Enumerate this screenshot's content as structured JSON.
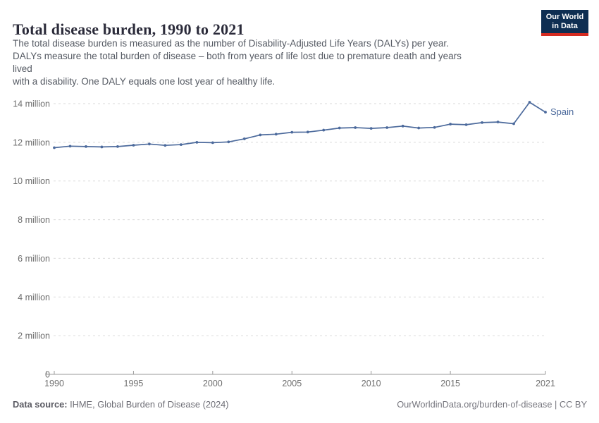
{
  "header": {
    "title": "Total disease burden, 1990 to 2021",
    "logo": {
      "line1": "Our World",
      "line2": "in Data"
    }
  },
  "subtitle_lines": [
    "The total disease burden is measured as the number of Disability-Adjusted Life Years (DALYs) per year.",
    "DALYs measure the total burden of disease – both from years of life lost due to premature death and years",
    "lived",
    "with a disability. One DALY equals one lost year of healthy life."
  ],
  "chart_data": {
    "type": "line",
    "title": "Total disease burden, 1990 to 2021",
    "entity_label": "Spain",
    "x": [
      1990,
      1991,
      1992,
      1993,
      1994,
      1995,
      1996,
      1997,
      1998,
      1999,
      2000,
      2001,
      2002,
      2003,
      2004,
      2005,
      2006,
      2007,
      2008,
      2009,
      2010,
      2011,
      2012,
      2013,
      2014,
      2015,
      2016,
      2017,
      2018,
      2019,
      2020,
      2021
    ],
    "series": [
      {
        "name": "Spain",
        "color": "#4c6a9c",
        "values_millions": [
          11.72,
          11.8,
          11.78,
          11.76,
          11.78,
          11.85,
          11.91,
          11.84,
          11.88,
          12.0,
          11.98,
          12.02,
          12.18,
          12.38,
          12.42,
          12.52,
          12.53,
          12.63,
          12.74,
          12.76,
          12.72,
          12.76,
          12.84,
          12.74,
          12.77,
          12.94,
          12.91,
          13.02,
          13.05,
          12.96,
          14.07,
          13.56
        ]
      }
    ],
    "x_ticks": [
      1990,
      1995,
      2000,
      2005,
      2010,
      2015,
      2021
    ],
    "y_ticks": [
      {
        "value_millions": 14,
        "label": "14 million"
      },
      {
        "value_millions": 12,
        "label": "12 million"
      },
      {
        "value_millions": 10,
        "label": "10 million"
      },
      {
        "value_millions": 8,
        "label": "8 million"
      },
      {
        "value_millions": 6,
        "label": "6 million"
      },
      {
        "value_millions": 4,
        "label": "4 million"
      },
      {
        "value_millions": 2,
        "label": "2 million"
      },
      {
        "value_millions": 0,
        "label": "0"
      }
    ],
    "xlim": [
      1990,
      2021
    ],
    "ylim_millions": [
      0,
      14
    ],
    "grid": "horizontal-dashed",
    "legend_position": "end-of-line-label"
  },
  "footer": {
    "source_label": "Data source:",
    "source_text": " IHME, Global Burden of Disease (2024)",
    "link_text": "OurWorldinData.org/burden-of-disease | CC BY"
  },
  "colors": {
    "line": "#4c6a9c",
    "grid": "#dadada",
    "axis": "#9a9a9a",
    "tick_text": "#6e6e6e",
    "logo_bg": "#0e2e52",
    "logo_stripe": "#d42b21"
  }
}
